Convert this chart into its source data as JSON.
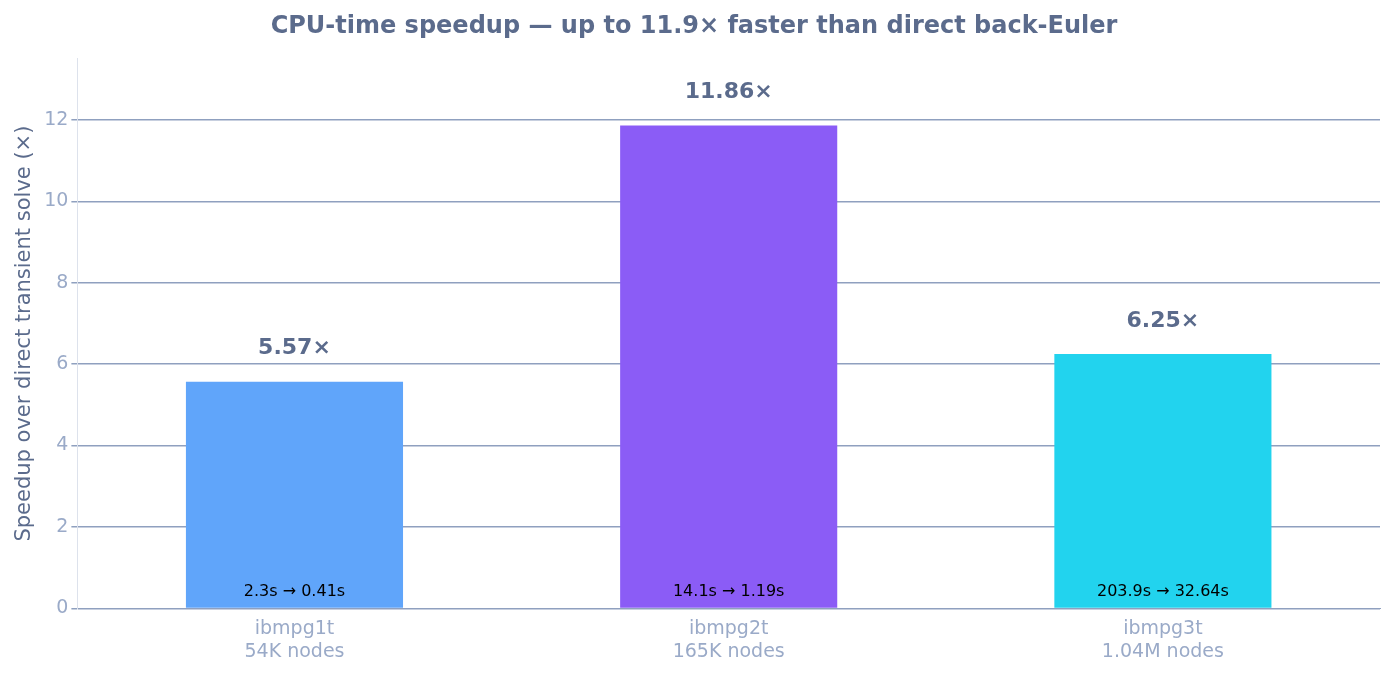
{
  "chart_data": {
    "type": "bar",
    "title": "CPU-time speedup — up to 11.9× faster than direct back-Euler",
    "ylabel": "Speedup over direct transient solve (×)",
    "categories": [
      "ibmpg1t\n54K nodes",
      "ibmpg2t\n165K nodes",
      "ibmpg3t\n1.04M nodes"
    ],
    "values": [
      5.57,
      11.86,
      6.25
    ],
    "colors": [
      "#60a5fa",
      "#8b5cf6",
      "#22d3ee"
    ],
    "value_labels": [
      "5.57×",
      "11.86×",
      "6.25×"
    ],
    "annotations": [
      {
        "text": "2.3s → 0.41s",
        "x": "ibmpg1t\n54K nodes",
        "y": 0
      },
      {
        "text": "14.1s → 1.19s",
        "x": "ibmpg2t\n165K nodes",
        "y": 0
      },
      {
        "text": "203.9s → 32.64s",
        "x": "ibmpg3t\n1.04M nodes",
        "y": 0
      }
    ],
    "ylim": [
      0,
      13.5
    ],
    "yticks": [
      0,
      2,
      4,
      6,
      8,
      10,
      12
    ],
    "grid": "y",
    "legend": false
  }
}
